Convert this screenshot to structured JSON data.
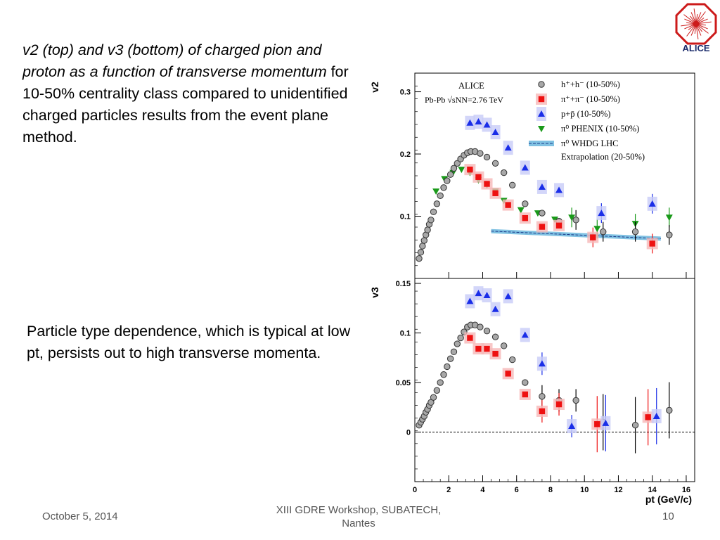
{
  "slide": {
    "para1_italic": "v2 (top) and v3 (bottom) of charged pion and proton as a function of transverse momentum",
    "para1_rest": " for 10-50% centrality class compared to unidentified charged particles results from the event plane method.",
    "para2": "Particle type dependence, which is typical at low pt, persists out to high transverse momenta.",
    "logo_text": "ALICE",
    "footer_date": "October 5, 2014",
    "footer_center": "XIII GDRE Workshop, SUBATECH, Nantes",
    "footer_page": "10"
  },
  "colors": {
    "charged": "#8a8a8a",
    "pion": "#ee1111",
    "proton": "#1a2ee8",
    "pi0": "#1a9a1a",
    "whdg": "#4aa6d6",
    "logo": "#cc1a1a"
  },
  "chart_data": [
    {
      "type": "scatter",
      "panel": "top",
      "ylabel": "v2",
      "ylim": [
        0.0,
        0.33
      ],
      "yticks": [
        "0.1",
        "0.2",
        "0.3"
      ],
      "xlim": [
        0,
        16.5
      ],
      "legend_header": [
        "ALICE",
        "Pb-Pb √sNN=2.76 TeV"
      ],
      "legend_placement": "top-right",
      "series": [
        {
          "name": "h⁺+h⁻ (10-50%)",
          "marker": "open-circle",
          "x": [
            0.25,
            0.35,
            0.45,
            0.55,
            0.65,
            0.75,
            0.85,
            0.95,
            1.1,
            1.3,
            1.5,
            1.7,
            1.9,
            2.1,
            2.3,
            2.5,
            2.7,
            2.9,
            3.1,
            3.3,
            3.55,
            3.85,
            4.25,
            4.75,
            5.25,
            5.75,
            6.5,
            7.5,
            8.5,
            9.5,
            11.1,
            13.0,
            15.0
          ],
          "y": [
            0.032,
            0.042,
            0.052,
            0.061,
            0.07,
            0.078,
            0.087,
            0.094,
            0.107,
            0.12,
            0.133,
            0.146,
            0.157,
            0.167,
            0.177,
            0.185,
            0.192,
            0.198,
            0.202,
            0.204,
            0.204,
            0.201,
            0.195,
            0.185,
            0.17,
            0.15,
            0.12,
            0.105,
            0.092,
            0.094,
            0.075,
            0.075,
            0.07
          ]
        },
        {
          "name": "π⁺+π⁻ (10-50%)",
          "marker": "square",
          "x": [
            3.25,
            3.75,
            4.25,
            4.75,
            5.5,
            6.5,
            7.5,
            8.5,
            10.5,
            14.0
          ],
          "y": [
            0.175,
            0.163,
            0.152,
            0.137,
            0.118,
            0.097,
            0.083,
            0.085,
            0.066,
            0.056
          ]
        },
        {
          "name": "p+p̄ (10-50%)",
          "marker": "triangle-up",
          "x": [
            3.25,
            3.75,
            4.25,
            4.75,
            5.5,
            6.5,
            7.5,
            8.5,
            11.0,
            14.0
          ],
          "y": [
            0.25,
            0.252,
            0.247,
            0.235,
            0.21,
            0.178,
            0.147,
            0.142,
            0.105,
            0.12
          ]
        },
        {
          "name": "π⁰ PHENIX (10-50%)",
          "marker": "triangle-down",
          "x": [
            1.25,
            1.75,
            2.25,
            2.75,
            3.25,
            3.75,
            4.25,
            4.75,
            5.25,
            6.25,
            7.25,
            8.25,
            9.25,
            10.75,
            13.0,
            15.0
          ],
          "y": [
            0.14,
            0.16,
            0.17,
            0.175,
            0.17,
            0.158,
            0.15,
            0.14,
            0.125,
            0.11,
            0.105,
            0.095,
            0.098,
            0.08,
            0.088,
            0.098
          ]
        }
      ],
      "band": {
        "name": "π⁰ WHDG LHC",
        "name2": "Extrapolation (20-50%)",
        "x": [
          4.5,
          14.5
        ],
        "y": [
          0.076,
          0.064
        ]
      }
    },
    {
      "type": "scatter",
      "panel": "bottom",
      "ylabel": "v3",
      "xlabel": "pt (GeV/c)",
      "ylim": [
        -0.05,
        0.155
      ],
      "yticks": [
        "0",
        "0.05",
        "0.1",
        "0.15"
      ],
      "xlim": [
        0,
        16.5
      ],
      "xticks": [
        "0",
        "2",
        "4",
        "6",
        "8",
        "10",
        "12",
        "14",
        "16"
      ],
      "series": [
        {
          "name": "h⁺+h⁻ (10-50%)",
          "marker": "open-circle",
          "x": [
            0.25,
            0.35,
            0.45,
            0.55,
            0.65,
            0.75,
            0.85,
            0.95,
            1.1,
            1.3,
            1.5,
            1.7,
            1.9,
            2.1,
            2.3,
            2.5,
            2.7,
            2.9,
            3.1,
            3.3,
            3.55,
            3.85,
            4.25,
            4.75,
            5.25,
            5.75,
            6.5,
            7.5,
            8.5,
            9.5,
            11.1,
            13.0,
            15.0
          ],
          "y": [
            0.007,
            0.01,
            0.013,
            0.016,
            0.02,
            0.023,
            0.027,
            0.03,
            0.035,
            0.042,
            0.05,
            0.058,
            0.066,
            0.074,
            0.081,
            0.089,
            0.095,
            0.101,
            0.106,
            0.108,
            0.108,
            0.106,
            0.102,
            0.096,
            0.087,
            0.073,
            0.05,
            0.036,
            0.032,
            0.032,
            0.01,
            0.007,
            0.022
          ]
        },
        {
          "name": "π⁺+π⁻ (10-50%)",
          "marker": "square",
          "x": [
            3.25,
            3.75,
            4.25,
            4.75,
            5.5,
            6.5,
            7.5,
            8.5,
            10.75,
            13.75
          ],
          "y": [
            0.095,
            0.084,
            0.084,
            0.079,
            0.059,
            0.038,
            0.021,
            0.028,
            0.008,
            0.015
          ]
        },
        {
          "name": "p+p̄ (10-50%)",
          "marker": "triangle-up",
          "x": [
            3.25,
            3.75,
            4.25,
            4.75,
            5.5,
            6.5,
            7.5,
            9.25,
            11.25,
            14.25
          ],
          "y": [
            0.132,
            0.14,
            0.138,
            0.124,
            0.137,
            0.098,
            0.069,
            0.006,
            0.009,
            0.016
          ]
        }
      ]
    }
  ]
}
